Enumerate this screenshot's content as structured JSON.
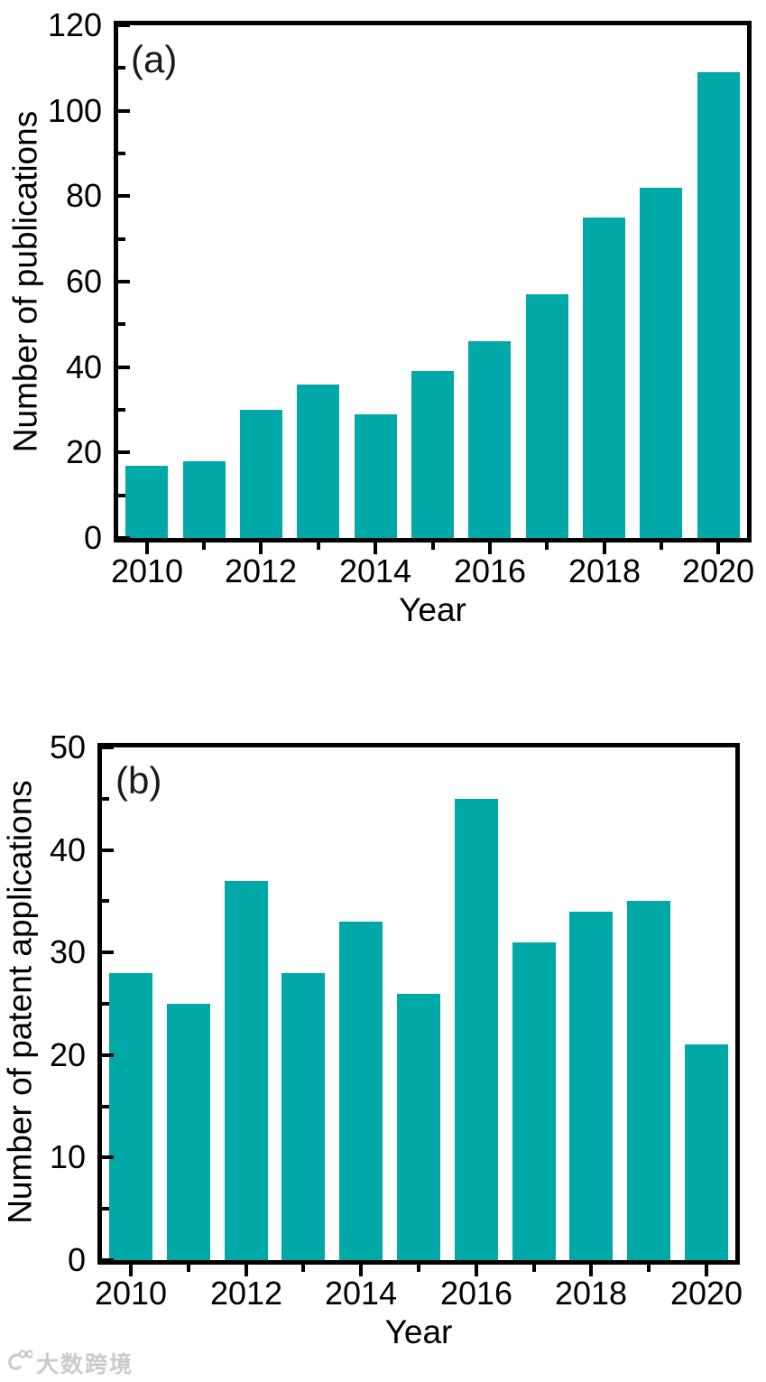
{
  "figure": {
    "background": "#ffffff",
    "bar_color": "#00A8A8",
    "axis_color": "#000000"
  },
  "watermark": {
    "text": "大数跨境",
    "color": "#cbcbcb"
  },
  "chart_data": [
    {
      "type": "bar",
      "panel_label": "(a)",
      "categories": [
        "2010",
        "2011",
        "2012",
        "2013",
        "2014",
        "2015",
        "2016",
        "2017",
        "2018",
        "2019",
        "2020"
      ],
      "values": [
        17,
        18,
        30,
        36,
        29,
        39,
        46,
        57,
        75,
        82,
        109
      ],
      "xlabel": "Year",
      "ylabel": "Number of publications",
      "ylim": [
        0,
        120
      ],
      "ytick_step": 20,
      "yminor_step": 10,
      "ytick_labels": [
        "0",
        "20",
        "40",
        "60",
        "80",
        "100",
        "120"
      ],
      "xtick_labels": [
        "2010",
        "2012",
        "2014",
        "2016",
        "2018",
        "2020"
      ],
      "legend": "none",
      "grid": false,
      "bar_color": "#00A8A8"
    },
    {
      "type": "bar",
      "panel_label": "(b)",
      "categories": [
        "2010",
        "2011",
        "2012",
        "2013",
        "2014",
        "2015",
        "2016",
        "2017",
        "2018",
        "2019",
        "2020"
      ],
      "values": [
        28,
        25,
        37,
        28,
        33,
        26,
        45,
        31,
        34,
        35,
        21
      ],
      "xlabel": "Year",
      "ylabel": "Number of patent applications",
      "ylim": [
        0,
        50
      ],
      "ytick_step": 10,
      "yminor_step": 5,
      "ytick_labels": [
        "0",
        "10",
        "20",
        "30",
        "40",
        "50"
      ],
      "xtick_labels": [
        "2010",
        "2012",
        "2014",
        "2016",
        "2018",
        "2020"
      ],
      "legend": "none",
      "grid": false,
      "bar_color": "#00A8A8"
    }
  ]
}
